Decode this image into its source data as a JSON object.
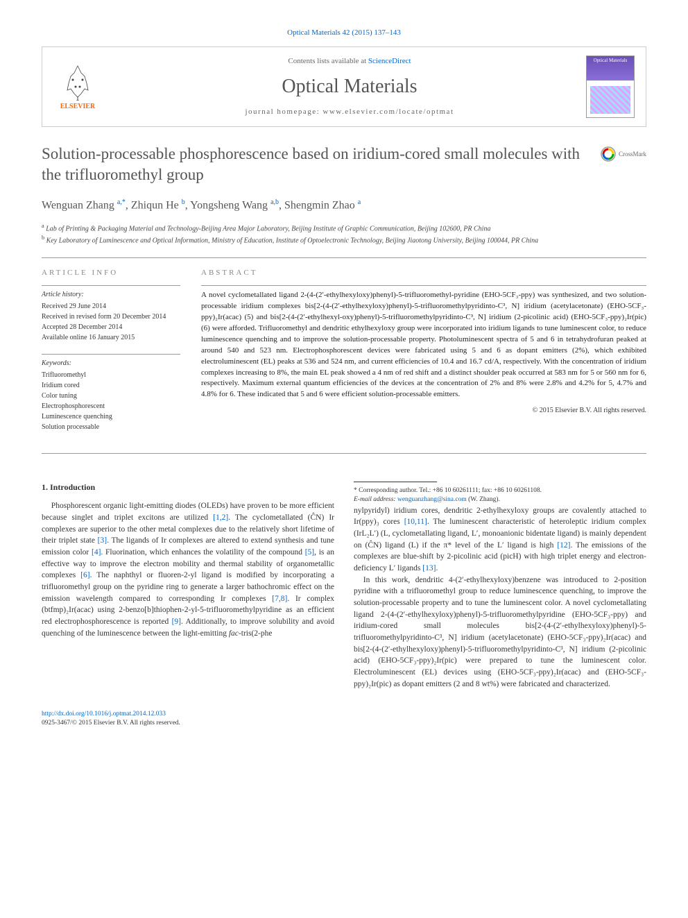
{
  "citation": "Optical Materials 42 (2015) 137–143",
  "header": {
    "publisher": "ELSEVIER",
    "contents_prefix": "Contents lists available at ",
    "contents_link": "ScienceDirect",
    "journal": "Optical Materials",
    "homepage_prefix": "journal homepage: ",
    "homepage": "www.elsevier.com/locate/optmat",
    "cover_label": "Optical Materials"
  },
  "article": {
    "title": "Solution-processable phosphorescence based on iridium-cored small molecules with the trifluoromethyl group",
    "crossmark": "CrossMark",
    "authors_html": "Wenguan Zhang <sup>a,*</sup>, Zhiqun He <sup>b</sup>, Yongsheng Wang <sup>a,b</sup>, Shengmin Zhao <sup>a</sup>",
    "affiliations": [
      "a Lab of Printing & Packaging Material and Technology-Beijing Area Major Laboratory, Beijing Institute of Graphic Communication, Beijing 102600, PR China",
      "b Key Laboratory of Luminescence and Optical Information, Ministry of Education, Institute of Optoelectronic Technology, Beijing Jiaotong University, Beijing 100044, PR China"
    ]
  },
  "info": {
    "heading": "ARTICLE INFO",
    "history_label": "Article history:",
    "history": [
      "Received 29 June 2014",
      "Received in revised form 20 December 2014",
      "Accepted 28 December 2014",
      "Available online 16 January 2015"
    ],
    "keywords_label": "Keywords:",
    "keywords": [
      "Trifluoromethyl",
      "Iridium cored",
      "Color tuning",
      "Electrophosphorescent",
      "Luminescence quenching",
      "Solution processable"
    ]
  },
  "abstract": {
    "heading": "ABSTRACT",
    "text": "A novel cyclometallated ligand 2-(4-(2′-ethylhexyloxy)phenyl)-5-trifluoromethyl-pyridine (EHO-5CF₃-ppy) was synthesized, and two solution-processable iridium complexes bis[2-(4-(2′-ethylhexyloxy)phenyl)-5-trifluoromethylpyridinto-C³, N] iridium (acetylacetonate) (EHO-5CF₃-ppy)₂Ir(acac) (5) and bis[2-(4-(2′-ethylhexyl-oxy)phenyl)-5-trifluoromethylpyridinto-C³, N] iridium (2-picolinic acid) (EHO-5CF₃-ppy)₂Ir(pic) (6) were afforded. Trifluoromethyl and dendritic ethylhexyloxy group were incorporated into iridium ligands to tune luminescent color, to reduce luminescence quenching and to improve the solution-processable property. Photoluminescent spectra of 5 and 6 in tetrahydrofuran peaked at around 540 and 523 nm. Electrophosphorescent devices were fabricated using 5 and 6 as dopant emitters (2%), which exhibited electroluminescent (EL) peaks at 536 and 524 nm, and current efficiencies of 10.4 and 16.7 cd/A, respectively. With the concentration of iridium complexes increasing to 8%, the main EL peak showed a 4 nm of red shift and a distinct shoulder peak occurred at 583 nm for 5 or 560 nm for 6, respectively. Maximum external quantum efficiencies of the devices at the concentration of 2% and 8% were 2.8% and 4.2% for 5, 4.7% and 4.8% for 6. These indicated that 5 and 6 were efficient solution-processable emitters.",
    "copyright": "© 2015 Elsevier B.V. All rights reserved."
  },
  "body": {
    "section_heading": "1. Introduction",
    "p1": "Phosphorescent organic light-emitting diodes (OLEDs) have proven to be more efficient because singlet and triplet excitons are utilized [1,2]. The cyclometallated (ĈN) Ir complexes are superior to the other metal complexes due to the relatively short lifetime of their triplet state [3]. The ligands of Ir complexes are altered to extend synthesis and tune emission color [4]. Fluorination, which enhances the volatility of the compound [5], is an effective way to improve the electron mobility and thermal stability of organometallic complexes [6]. The naphthyl or fluoren-2-yl ligand is modified by incorporating a trifluoromethyl group on the pyridine ring to generate a larger bathochromic effect on the emission wavelength compared to corresponding Ir complexes [7,8]. Ir complex (btfmp)₂Ir(acac) using 2-benzo[b]thiophen-2-yl-5-trifluoromethylpyridine as an efficient red electrophosphorescence is reported [9]. Additionally, to improve solubility and avoid quenching of the luminescence between the light-emitting fac-tris(2-phe",
    "p2": "nylpyridyl) iridium cores, dendritic 2-ethylhexyloxy groups are covalently attached to Ir(ppy)₃ cores [10,11]. The luminescent characteristic of heteroleptic iridium complex (IrL₂L′) (L, cyclometallating ligand, L′, monoanionic bidentate ligand) is mainly dependent on (ĈN) ligand (L) if the π* level of the L′ ligand is high [12]. The emissions of the complexes are blue-shift by 2-picolinic acid (picH) with high triplet energy and electron-deficiency L′ ligands [13].",
    "p3": "In this work, dendritic 4-(2′-ethylhexyloxy)benzene was introduced to 2-position pyridine with a trifluoromethyl group to reduce luminescence quenching, to improve the solution-processable property and to tune the luminescent color. A novel cyclometallating ligand 2-(4-(2′-ethylhexyloxy)phenyl)-5-trifluoromethylpyridine (EHO-5CF₃-ppy) and iridium-cored small molecules bis[2-(4-(2′-ethylhexyloxy)phenyl)-5-trifluoromethylpyridinto-C³, N] iridium (acetylacetonate) (EHO-5CF₃-ppy)₂Ir(acac) and bis[2-(4-(2′-ethylhexyloxy)phenyl)-5-trifluoromethylpyridinto-C³, N] iridium (2-picolinic acid) (EHO-5CF₃-ppy)₂Ir(pic) were prepared to tune the luminescent color. Electroluminescent (EL) devices using (EHO-5CF₃-ppy)₂Ir(acac) and (EHO-5CF₃-ppy)₂Ir(pic) as dopant emitters (2 and 8 wt%) were fabricated and characterized."
  },
  "footnote": {
    "corresponding": "* Corresponding author. Tel.: +86 10 60261111; fax: +86 10 60261108.",
    "email_label": "E-mail address: ",
    "email": "wenguanzhang@sina.com",
    "email_suffix": " (W. Zhang)."
  },
  "footer": {
    "doi": "http://dx.doi.org/10.1016/j.optmat.2014.12.033",
    "issn_line": "0925-3467/© 2015 Elsevier B.V. All rights reserved."
  },
  "refs": {
    "r12": "[1,2]",
    "r3": "[3]",
    "r4": "[4]",
    "r5": "[5]",
    "r6": "[6]",
    "r78": "[7,8]",
    "r9": "[9]",
    "r1011": "[10,11]",
    "r12b": "[12]",
    "r13": "[13]"
  },
  "colors": {
    "link": "#0066cc",
    "publisher_orange": "#ff6600",
    "text": "#333333",
    "muted": "#888888",
    "border": "#cccccc"
  }
}
